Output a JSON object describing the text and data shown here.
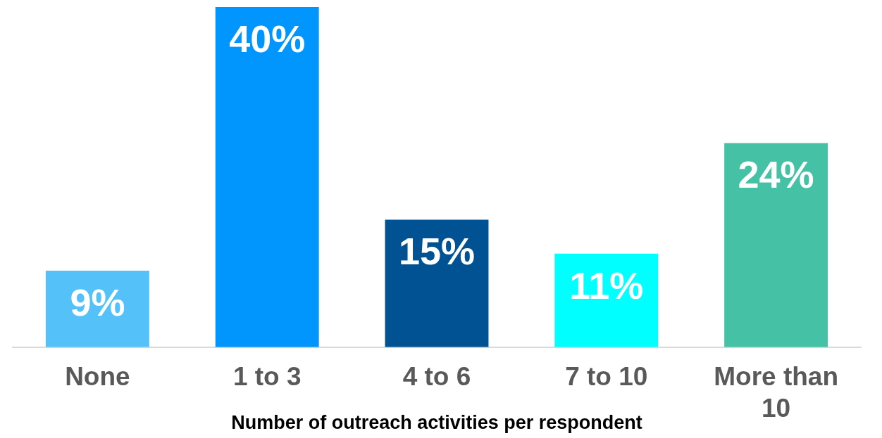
{
  "chart_data": {
    "type": "bar",
    "xlabel": "Number of outreach activities per respondent",
    "categories": [
      "None",
      "1 to 3",
      "4 to 6",
      "7 to 10",
      "More than 10"
    ],
    "values": [
      9,
      40,
      15,
      11,
      24
    ],
    "colors": [
      "#55c1f9",
      "#0096fe",
      "#005293",
      "#00ffff",
      "#45c1a5"
    ],
    "data_labels": true,
    "value_labels": [
      "9%",
      "40%",
      "15%",
      "11%",
      "24%"
    ],
    "grid": false,
    "legend": false
  }
}
